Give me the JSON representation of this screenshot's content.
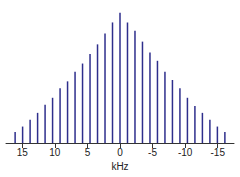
{
  "chart_data": {
    "type": "bar",
    "x_label": "kHz",
    "color": "#2e2e8c",
    "x": [
      16.1,
      14.95,
      13.8,
      12.65,
      11.5,
      10.35,
      9.2,
      8.05,
      6.9,
      5.75,
      4.6,
      3.45,
      2.3,
      1.15,
      0,
      -1.15,
      -2.3,
      -3.45,
      -4.6,
      -5.75,
      -6.9,
      -8.05,
      -9.2,
      -10.35,
      -11.5,
      -12.65,
      -13.8,
      -14.95,
      -16.1
    ],
    "values": [
      8,
      12,
      17,
      22,
      28,
      33,
      40,
      45,
      52,
      58,
      65,
      72,
      80,
      88,
      95,
      88,
      82,
      74,
      66,
      60,
      52,
      46,
      40,
      33,
      27,
      22,
      17,
      12,
      8
    ],
    "xlim": [
      17.5,
      -17.5
    ],
    "xticks": [
      15,
      10,
      5,
      0,
      -5,
      -10,
      -15
    ],
    "ylim": [
      0,
      100
    ],
    "grid": false,
    "tick_labels": "x"
  }
}
